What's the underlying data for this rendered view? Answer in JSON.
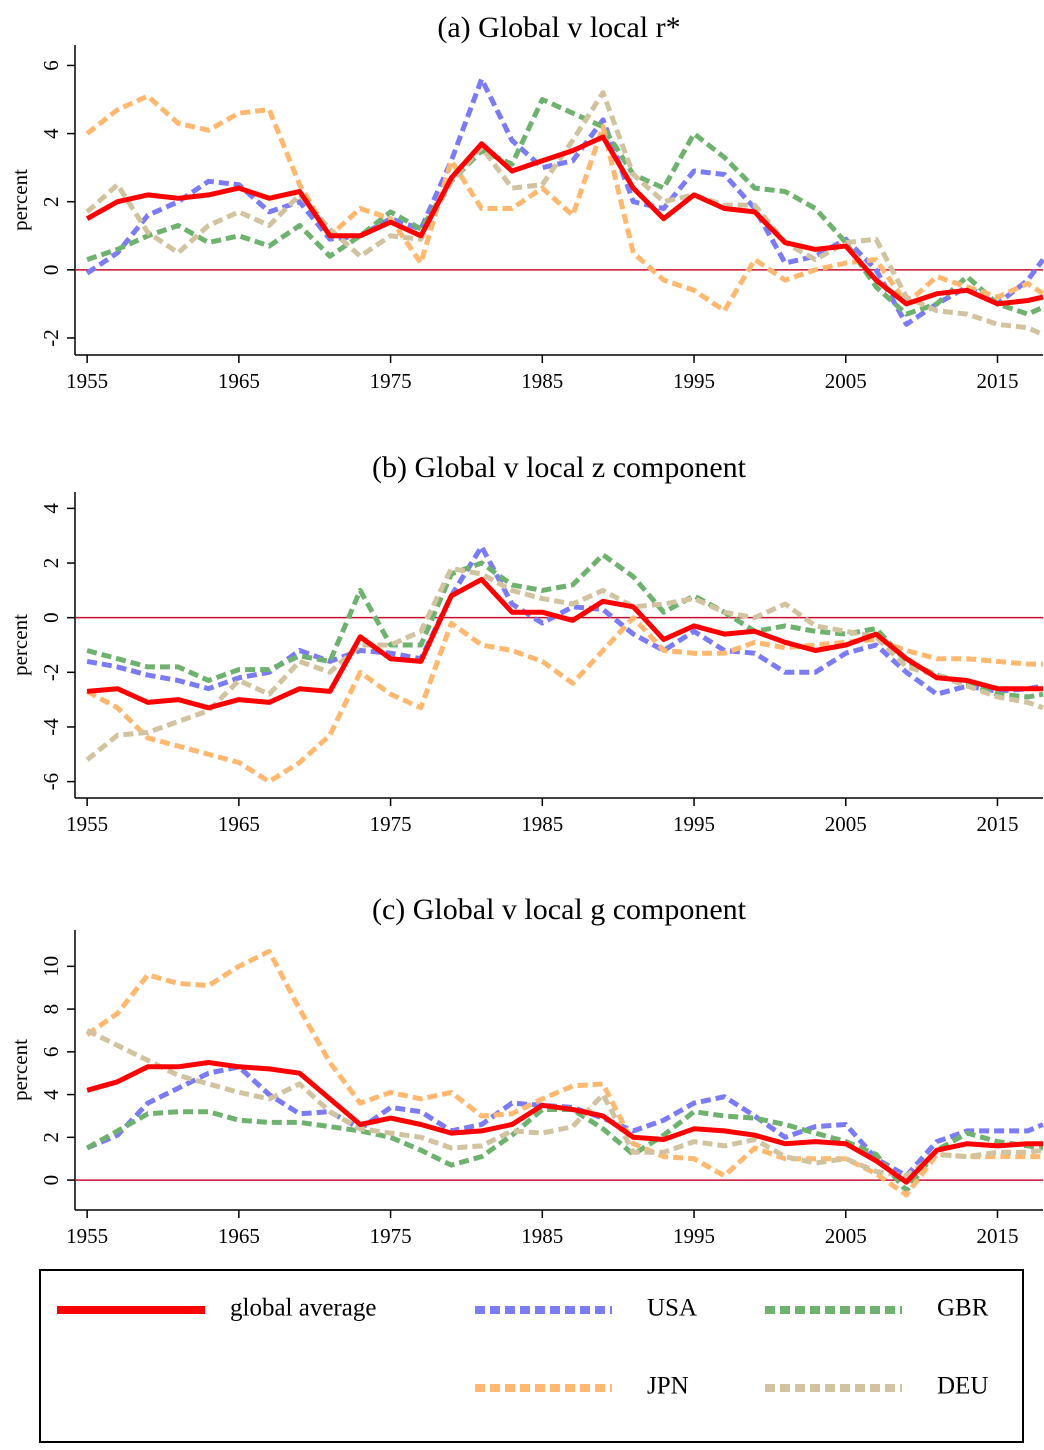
{
  "chart_data": [
    {
      "type": "line",
      "title": "(a) Global v local r*",
      "ylabel": "percent",
      "x": [
        1955,
        1957,
        1959,
        1961,
        1963,
        1965,
        1967,
        1969,
        1971,
        1973,
        1975,
        1977,
        1979,
        1981,
        1983,
        1985,
        1987,
        1989,
        1991,
        1993,
        1995,
        1997,
        1999,
        2001,
        2003,
        2005,
        2007,
        2009,
        2011,
        2013,
        2015,
        2017,
        2018
      ],
      "xlim": [
        1954.2,
        2018
      ],
      "xticks": [
        1955,
        1965,
        1975,
        1985,
        1995,
        2005,
        2015
      ],
      "ylim": [
        -2.5,
        6.6
      ],
      "yticks": [
        -2,
        0,
        2,
        4,
        6
      ],
      "hline": 0,
      "hline_color": "#c8102e",
      "series": [
        {
          "name": "global average",
          "color": "#ff0000",
          "style": "solid",
          "values": [
            1.5,
            2.0,
            2.2,
            2.1,
            2.2,
            2.4,
            2.1,
            2.3,
            1.0,
            1.0,
            1.4,
            1.0,
            2.7,
            3.7,
            2.9,
            3.2,
            3.5,
            3.9,
            2.4,
            1.5,
            2.2,
            1.8,
            1.7,
            0.8,
            0.6,
            0.7,
            -0.3,
            -1.0,
            -0.7,
            -0.6,
            -1.0,
            -0.9,
            -0.8
          ]
        },
        {
          "name": "USA",
          "color": "#7b7bf5",
          "style": "dashed",
          "values": [
            -0.1,
            0.5,
            1.6,
            2.0,
            2.6,
            2.5,
            1.7,
            2.0,
            0.9,
            1.0,
            1.5,
            1.2,
            3.2,
            5.6,
            3.8,
            3.0,
            3.2,
            4.4,
            2.0,
            1.8,
            2.9,
            2.8,
            1.8,
            0.2,
            0.4,
            0.9,
            0.0,
            -1.6,
            -1.0,
            -0.5,
            -1.0,
            -0.3,
            0.3
          ]
        },
        {
          "name": "GBR",
          "color": "#6fb26f",
          "style": "dashed",
          "values": [
            0.3,
            0.6,
            1.0,
            1.3,
            0.8,
            1.0,
            0.7,
            1.3,
            0.4,
            1.0,
            1.7,
            1.2,
            2.6,
            3.5,
            3.1,
            5.0,
            4.6,
            4.2,
            2.8,
            2.4,
            4.0,
            3.3,
            2.4,
            2.3,
            1.8,
            0.8,
            -0.5,
            -1.3,
            -1.0,
            -0.2,
            -1.0,
            -1.3,
            -1.1
          ]
        },
        {
          "name": "JPN",
          "color": "#ffb870",
          "style": "dashed",
          "values": [
            4.0,
            4.7,
            5.1,
            4.3,
            4.1,
            4.6,
            4.7,
            2.5,
            1.0,
            1.8,
            1.5,
            0.2,
            3.2,
            1.8,
            1.8,
            2.4,
            1.6,
            4.2,
            0.5,
            -0.3,
            -0.6,
            -1.2,
            0.3,
            -0.3,
            0.0,
            0.2,
            0.3,
            -1.0,
            -0.2,
            -0.5,
            -0.8,
            -0.4,
            -0.7
          ]
        },
        {
          "name": "DEU",
          "color": "#d2c3a0",
          "style": "dashed",
          "values": [
            1.7,
            2.5,
            1.1,
            0.5,
            1.3,
            1.7,
            1.3,
            2.2,
            1.2,
            0.4,
            1.0,
            0.9,
            2.6,
            3.6,
            2.4,
            2.5,
            3.8,
            5.2,
            2.8,
            2.0,
            2.2,
            1.9,
            1.9,
            0.8,
            0.3,
            0.8,
            0.9,
            -0.8,
            -1.2,
            -1.3,
            -1.6,
            -1.7,
            -1.9
          ]
        }
      ]
    },
    {
      "type": "line",
      "title": "(b) Global v local z component",
      "ylabel": "percent",
      "x": [
        1955,
        1957,
        1959,
        1961,
        1963,
        1965,
        1967,
        1969,
        1971,
        1973,
        1975,
        1977,
        1979,
        1981,
        1983,
        1985,
        1987,
        1989,
        1991,
        1993,
        1995,
        1997,
        1999,
        2001,
        2003,
        2005,
        2007,
        2009,
        2011,
        2013,
        2015,
        2017,
        2018
      ],
      "xlim": [
        1954.2,
        2018
      ],
      "xticks": [
        1955,
        1965,
        1975,
        1985,
        1995,
        2005,
        2015
      ],
      "ylim": [
        -6.6,
        4.6
      ],
      "yticks": [
        -6,
        -4,
        -2,
        0,
        2,
        4
      ],
      "hline": 0,
      "hline_color": "#c8102e",
      "series": [
        {
          "color": "#ff0000",
          "style": "solid",
          "values": [
            -2.7,
            -2.6,
            -3.1,
            -3.0,
            -3.3,
            -3.0,
            -3.1,
            -2.6,
            -2.7,
            -0.7,
            -1.5,
            -1.6,
            0.8,
            1.4,
            0.2,
            0.2,
            -0.1,
            0.6,
            0.4,
            -0.8,
            -0.3,
            -0.6,
            -0.5,
            -0.9,
            -1.2,
            -1.0,
            -0.6,
            -1.5,
            -2.2,
            -2.3,
            -2.6,
            -2.6,
            -2.6
          ]
        },
        {
          "color": "#7b7bf5",
          "style": "dashed",
          "values": [
            -1.6,
            -1.8,
            -2.1,
            -2.3,
            -2.6,
            -2.2,
            -2.0,
            -1.2,
            -1.6,
            -1.2,
            -1.3,
            -1.5,
            0.8,
            2.6,
            0.5,
            -0.2,
            0.4,
            0.3,
            -0.6,
            -1.2,
            -0.5,
            -1.2,
            -1.3,
            -2.0,
            -2.0,
            -1.3,
            -1.0,
            -2.0,
            -2.8,
            -2.5,
            -2.7,
            -2.6,
            -2.5
          ]
        },
        {
          "color": "#6fb26f",
          "style": "dashed",
          "values": [
            -1.2,
            -1.5,
            -1.8,
            -1.8,
            -2.3,
            -1.9,
            -1.9,
            -1.4,
            -1.6,
            1.0,
            -1.0,
            -1.0,
            1.6,
            2.0,
            1.2,
            1.0,
            1.2,
            2.3,
            1.5,
            0.2,
            0.8,
            0.2,
            -0.5,
            -0.3,
            -0.5,
            -0.6,
            -0.4,
            -1.6,
            -2.1,
            -2.4,
            -2.8,
            -2.9,
            -2.8
          ]
        },
        {
          "color": "#ffb870",
          "style": "dashed",
          "values": [
            -2.7,
            -3.3,
            -4.4,
            -4.7,
            -5.0,
            -5.3,
            -6.0,
            -5.3,
            -4.3,
            -2.0,
            -2.8,
            -3.3,
            -0.2,
            -1.0,
            -1.2,
            -1.6,
            -2.4,
            -1.2,
            0.0,
            -1.2,
            -1.3,
            -1.3,
            -0.9,
            -1.1,
            -1.0,
            -0.9,
            -0.8,
            -1.2,
            -1.5,
            -1.5,
            -1.6,
            -1.7,
            -1.7
          ]
        },
        {
          "color": "#d2c3a0",
          "style": "dashed",
          "values": [
            -5.2,
            -4.3,
            -4.2,
            -3.8,
            -3.4,
            -2.3,
            -2.8,
            -1.6,
            -2.0,
            -1.0,
            -1.0,
            -0.5,
            1.8,
            1.6,
            1.0,
            0.7,
            0.5,
            1.0,
            0.4,
            0.5,
            0.7,
            0.2,
            0.0,
            0.5,
            -0.3,
            -0.5,
            -0.7,
            -1.8,
            -2.1,
            -2.5,
            -2.9,
            -3.1,
            -3.3
          ]
        }
      ]
    },
    {
      "type": "line",
      "title": "(c) Global v local g component",
      "ylabel": "percent",
      "x": [
        1955,
        1957,
        1959,
        1961,
        1963,
        1965,
        1967,
        1969,
        1971,
        1973,
        1975,
        1977,
        1979,
        1981,
        1983,
        1985,
        1987,
        1989,
        1991,
        1993,
        1995,
        1997,
        1999,
        2001,
        2003,
        2005,
        2007,
        2009,
        2011,
        2013,
        2015,
        2017,
        2018
      ],
      "xlim": [
        1954.2,
        2018
      ],
      "xticks": [
        1955,
        1965,
        1975,
        1985,
        1995,
        2005,
        2015
      ],
      "ylim": [
        -1.4,
        11.7
      ],
      "yticks": [
        0,
        2,
        4,
        6,
        8,
        10
      ],
      "hline": 0,
      "hline_color": "#c8102e",
      "series": [
        {
          "color": "#ff0000",
          "style": "solid",
          "values": [
            4.2,
            4.6,
            5.3,
            5.3,
            5.5,
            5.3,
            5.2,
            5.0,
            3.8,
            2.6,
            2.9,
            2.6,
            2.2,
            2.3,
            2.6,
            3.5,
            3.3,
            3.0,
            2.0,
            1.9,
            2.4,
            2.3,
            2.1,
            1.7,
            1.8,
            1.7,
            0.9,
            -0.1,
            1.4,
            1.7,
            1.6,
            1.7,
            1.7
          ]
        },
        {
          "color": "#7b7bf5",
          "style": "dashed",
          "values": [
            1.5,
            2.1,
            3.6,
            4.3,
            5.0,
            5.3,
            4.0,
            3.1,
            3.2,
            2.4,
            3.4,
            3.2,
            2.3,
            2.6,
            3.6,
            3.5,
            3.4,
            2.9,
            2.3,
            2.8,
            3.6,
            3.9,
            3.0,
            2.0,
            2.5,
            2.6,
            1.0,
            0.2,
            1.8,
            2.3,
            2.3,
            2.3,
            2.6
          ]
        },
        {
          "color": "#6fb26f",
          "style": "dashed",
          "values": [
            1.5,
            2.3,
            3.1,
            3.2,
            3.2,
            2.8,
            2.7,
            2.7,
            2.5,
            2.3,
            2.0,
            1.4,
            0.7,
            1.1,
            2.1,
            3.3,
            3.3,
            2.4,
            1.2,
            2.1,
            3.2,
            3.0,
            2.9,
            2.6,
            2.2,
            1.8,
            1.2,
            -0.5,
            1.4,
            2.2,
            1.8,
            1.6,
            1.5
          ]
        },
        {
          "color": "#ffb870",
          "style": "dashed",
          "values": [
            6.8,
            7.8,
            9.6,
            9.2,
            9.1,
            10.0,
            10.7,
            8.0,
            5.5,
            3.6,
            4.1,
            3.8,
            4.1,
            3.0,
            3.1,
            3.8,
            4.4,
            4.5,
            1.7,
            1.1,
            1.0,
            0.2,
            1.5,
            1.0,
            1.0,
            1.0,
            0.3,
            -0.7,
            1.2,
            1.1,
            1.1,
            1.1,
            1.1
          ]
        },
        {
          "color": "#d2c3a0",
          "style": "dashed",
          "values": [
            7.0,
            6.3,
            5.6,
            4.9,
            4.5,
            4.1,
            3.8,
            4.5,
            3.2,
            2.4,
            2.2,
            2.0,
            1.5,
            1.6,
            2.3,
            2.2,
            2.5,
            4.0,
            1.3,
            1.3,
            1.8,
            1.6,
            1.9,
            1.1,
            0.8,
            1.0,
            0.4,
            0.2,
            1.2,
            1.1,
            1.3,
            1.3,
            1.4
          ]
        }
      ]
    }
  ]
}
